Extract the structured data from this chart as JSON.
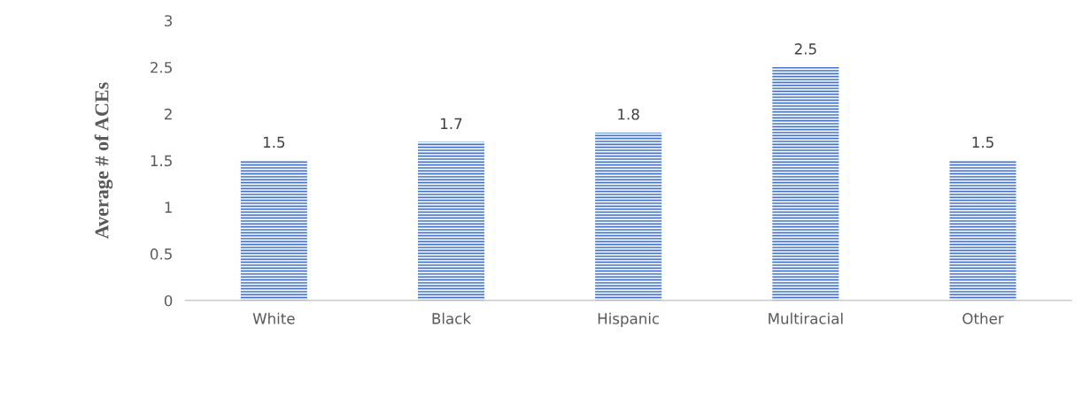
{
  "chart_data": {
    "type": "bar",
    "ylabel": "Average # of ACEs",
    "categories": [
      "White",
      "Black",
      "Hispanic",
      "Multiracial",
      "Other"
    ],
    "values": [
      1.5,
      1.7,
      1.8,
      2.5,
      1.5
    ],
    "color": "#4472c4",
    "ylim": [
      0,
      3
    ],
    "yticks": [
      0,
      0.5,
      1,
      1.5,
      2,
      2.5,
      3
    ],
    "data_labels": true,
    "grid": false,
    "legend": false
  }
}
